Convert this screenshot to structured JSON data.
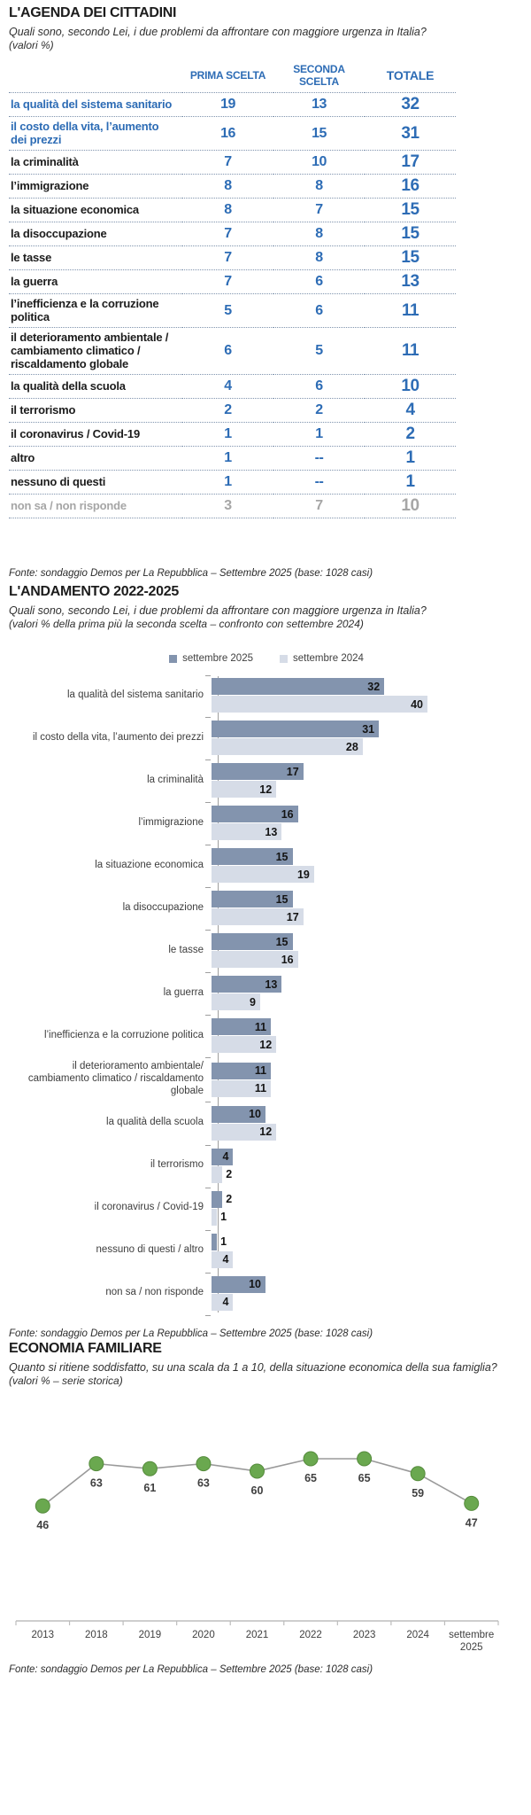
{
  "colors": {
    "accent_blue": "#2d6cb5",
    "bar_2025": "#8394ae",
    "bar_2024": "#d6dce7",
    "marker_green": "#6aa84f",
    "muted_gray": "#a6a6a6"
  },
  "section1": {
    "title": "L'AGENDA DEI CITTADINI",
    "question": "Quali sono, secondo Lei, i due problemi da affrontare con maggiore urgenza in Italia?",
    "note": "(valori %)",
    "columns": [
      "PRIMA SCELTA",
      "SECONDA SCELTA",
      "TOTALE"
    ],
    "rows": [
      {
        "label": "la qualità del sistema sanitario",
        "prima": "19",
        "seconda": "13",
        "totale": "32",
        "style": "highlight"
      },
      {
        "label": "il costo della vita, l’aumento dei prezzi",
        "prima": "16",
        "seconda": "15",
        "totale": "31",
        "style": "highlight"
      },
      {
        "label": "la criminalità",
        "prima": "7",
        "seconda": "10",
        "totale": "17",
        "style": ""
      },
      {
        "label": "l’immigrazione",
        "prima": "8",
        "seconda": "8",
        "totale": "16",
        "style": ""
      },
      {
        "label": "la situazione economica",
        "prima": "8",
        "seconda": "7",
        "totale": "15",
        "style": ""
      },
      {
        "label": "la disoccupazione",
        "prima": "7",
        "seconda": "8",
        "totale": "15",
        "style": ""
      },
      {
        "label": "le tasse",
        "prima": "7",
        "seconda": "8",
        "totale": "15",
        "style": ""
      },
      {
        "label": "la guerra",
        "prima": "7",
        "seconda": "6",
        "totale": "13",
        "style": ""
      },
      {
        "label": "l’inefficienza e la corruzione politica",
        "prima": "5",
        "seconda": "6",
        "totale": "11",
        "style": ""
      },
      {
        "label": "il deterioramento ambientale / cambiamento climatico / riscaldamento globale",
        "prima": "6",
        "seconda": "5",
        "totale": "11",
        "style": ""
      },
      {
        "label": "la qualità della scuola",
        "prima": "4",
        "seconda": "6",
        "totale": "10",
        "style": ""
      },
      {
        "label": "il terrorismo",
        "prima": "2",
        "seconda": "2",
        "totale": "4",
        "style": ""
      },
      {
        "label": "il coronavirus / Covid-19",
        "prima": "1",
        "seconda": "1",
        "totale": "2",
        "style": ""
      },
      {
        "label": "altro",
        "prima": "1",
        "seconda": "--",
        "totale": "1",
        "style": ""
      },
      {
        "label": "nessuno di questi",
        "prima": "1",
        "seconda": "--",
        "totale": "1",
        "style": ""
      },
      {
        "label": "non sa / non risponde",
        "prima": "3",
        "seconda": "7",
        "totale": "10",
        "style": "muted"
      }
    ],
    "fonte": "Fonte: sondaggio Demos per La Repubblica – Settembre 2025 (base: 1028 casi)"
  },
  "section2": {
    "title": "L'ANDAMENTO 2022-2025",
    "question": "Quali sono, secondo Lei, i due problemi da affrontare con maggiore urgenza in Italia?",
    "note": "(valori % della prima più la seconda scelta  – confronto con settembre 2024)",
    "fonte": "Fonte: sondaggio Demos per La Repubblica – Settembre 2025 (base: 1028 casi)"
  },
  "section3": {
    "title": "ECONOMIA FAMILIARE",
    "question": "Quanto si ritiene soddisfatto, su una scala da 1 a 10, della situazione economica della sua famiglia?",
    "note": "(valori % – serie storica)",
    "fonte": "Fonte: sondaggio Demos per La Repubblica – Settembre 2025 (base: 1028 casi)"
  },
  "chart_data": [
    {
      "type": "bar",
      "orientation": "horizontal",
      "title": "L'ANDAMENTO 2022-2025",
      "legend_position": "top-center",
      "xlim": [
        0,
        40
      ],
      "value_labels": true,
      "categories": [
        "la qualità del sistema sanitario",
        "il costo della vita, l’aumento dei prezzi",
        "la criminalità",
        "l’immigrazione",
        "la situazione economica",
        "la disoccupazione",
        "le tasse",
        "la guerra",
        "l’inefficienza e la corruzione politica",
        "il deterioramento ambientale/ cambiamento climatico / riscaldamento globale",
        "la qualità della scuola",
        "il terrorismo",
        "il coronavirus / Covid-19",
        "nessuno di questi / altro",
        "non sa / non risponde"
      ],
      "series": [
        {
          "name": "settembre 2025",
          "color": "#8394ae",
          "values": [
            32,
            31,
            17,
            16,
            15,
            15,
            15,
            13,
            11,
            11,
            10,
            4,
            2,
            1,
            10
          ]
        },
        {
          "name": "settembre 2024",
          "color": "#d6dce7",
          "values": [
            40,
            28,
            12,
            13,
            19,
            17,
            16,
            9,
            12,
            11,
            12,
            2,
            1,
            4,
            4
          ]
        }
      ]
    },
    {
      "type": "line",
      "title": "ECONOMIA FAMILIARE",
      "x": [
        "2013",
        "2018",
        "2019",
        "2020",
        "2021",
        "2022",
        "2023",
        "2024",
        "settembre 2025"
      ],
      "values": [
        46,
        63,
        61,
        63,
        60,
        65,
        65,
        59,
        47
      ],
      "ylim": [
        40,
        70
      ],
      "marker_color": "#6aa84f",
      "marker_stroke": "#558b3c",
      "line_color": "#9a9a9a",
      "grid": false,
      "value_labels": true
    }
  ]
}
